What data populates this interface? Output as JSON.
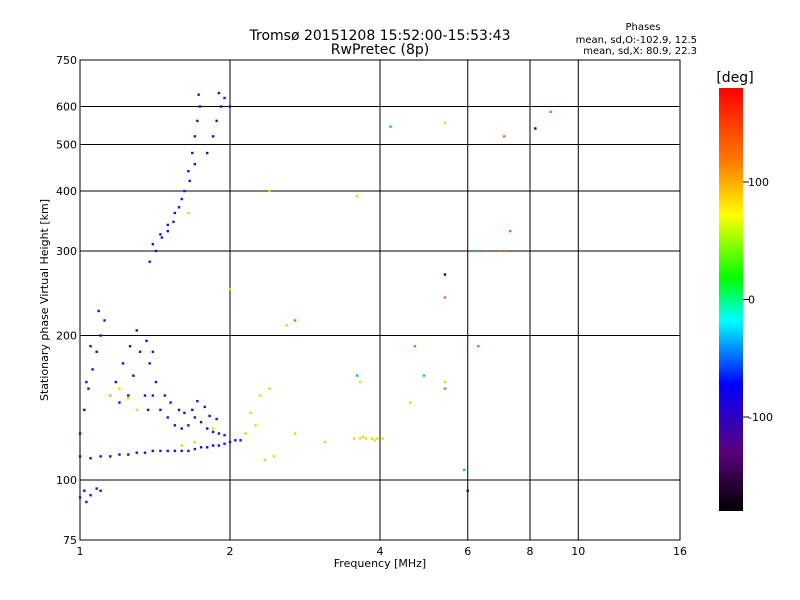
{
  "chart_data": {
    "type": "scatter",
    "title": "Tromsø 20151208 15:52:00-15:53:43",
    "subtitle": "RwPretec (8p)",
    "xlabel": "Frequency [MHz]",
    "ylabel": "Stationary phase Virtual Height [km]",
    "x_scale": "log",
    "y_scale": "log",
    "xlim": [
      1,
      16
    ],
    "ylim": [
      75,
      750
    ],
    "x_ticks": [
      1,
      2,
      4,
      6,
      8,
      10,
      16
    ],
    "x_tick_labels": [
      "1",
      "2",
      "4",
      "6",
      "8",
      "10",
      "16"
    ],
    "y_ticks": [
      75,
      100,
      200,
      300,
      400,
      500,
      600,
      750
    ],
    "y_tick_labels": [
      "75",
      "100",
      "200",
      "300",
      "400",
      "500",
      "600",
      "750"
    ],
    "grid": true,
    "legend": {
      "title": "Phases",
      "lines": [
        "mean, sd,O:-102.9, 12.5",
        "mean, sd,X: 80.9, 22.3"
      ],
      "placement": "top-right"
    },
    "colorbar": {
      "label": "[deg]",
      "range": [
        -180,
        180
      ],
      "ticks": [
        100,
        0,
        -100
      ],
      "tick_labels": [
        "100",
        "0",
        "-100"
      ],
      "colors": [
        "#000000",
        "#5a007a",
        "#0000ff",
        "#00ffff",
        "#00ff00",
        "#ffff00",
        "#ff8000",
        "#ff0000"
      ]
    },
    "series": [
      {
        "values": [
          [
            1.0,
            92
          ],
          [
            1.02,
            95
          ],
          [
            1.05,
            93
          ],
          [
            1.08,
            96
          ],
          [
            1.1,
            95
          ],
          [
            1.03,
            90
          ],
          [
            1.0,
            112
          ],
          [
            1.05,
            111
          ],
          [
            1.1,
            112
          ],
          [
            1.15,
            112
          ],
          [
            1.2,
            113
          ],
          [
            1.25,
            113
          ],
          [
            1.3,
            114
          ],
          [
            1.35,
            114
          ],
          [
            1.4,
            115
          ],
          [
            1.45,
            115
          ],
          [
            1.5,
            115
          ],
          [
            1.55,
            115
          ],
          [
            1.6,
            115
          ],
          [
            1.65,
            115
          ],
          [
            1.7,
            116
          ],
          [
            1.75,
            117
          ],
          [
            1.8,
            117
          ],
          [
            1.85,
            118
          ],
          [
            1.9,
            118
          ],
          [
            1.95,
            119
          ],
          [
            2.0,
            120
          ],
          [
            2.05,
            121
          ],
          [
            2.1,
            121
          ],
          [
            1.0,
            125
          ],
          [
            1.02,
            140
          ],
          [
            1.04,
            155
          ],
          [
            1.06,
            170
          ],
          [
            1.08,
            185
          ],
          [
            1.1,
            200
          ],
          [
            1.12,
            215
          ],
          [
            1.09,
            225
          ],
          [
            1.05,
            190
          ],
          [
            1.03,
            160
          ],
          [
            1.15,
            150
          ],
          [
            1.2,
            145
          ],
          [
            1.25,
            150
          ],
          [
            1.18,
            160
          ],
          [
            1.22,
            175
          ],
          [
            1.26,
            190
          ],
          [
            1.3,
            205
          ],
          [
            1.32,
            185
          ],
          [
            1.28,
            165
          ],
          [
            1.35,
            150
          ],
          [
            1.37,
            140
          ],
          [
            1.4,
            150
          ],
          [
            1.42,
            160
          ],
          [
            1.38,
            175
          ],
          [
            1.4,
            185
          ],
          [
            1.36,
            195
          ],
          [
            1.45,
            140
          ],
          [
            1.5,
            135
          ],
          [
            1.55,
            130
          ],
          [
            1.6,
            128
          ],
          [
            1.65,
            130
          ],
          [
            1.7,
            135
          ],
          [
            1.75,
            132
          ],
          [
            1.8,
            128
          ],
          [
            1.85,
            126
          ],
          [
            1.9,
            125
          ],
          [
            1.95,
            124
          ],
          [
            1.48,
            150
          ],
          [
            1.52,
            145
          ],
          [
            1.58,
            140
          ],
          [
            1.62,
            138
          ],
          [
            1.68,
            140
          ],
          [
            1.72,
            146
          ],
          [
            1.78,
            142
          ],
          [
            1.82,
            136
          ],
          [
            1.88,
            134
          ],
          [
            1.38,
            285
          ],
          [
            1.42,
            300
          ],
          [
            1.46,
            320
          ],
          [
            1.5,
            330
          ],
          [
            1.54,
            345
          ],
          [
            1.58,
            370
          ],
          [
            1.62,
            400
          ],
          [
            1.65,
            440
          ],
          [
            1.68,
            480
          ],
          [
            1.7,
            520
          ],
          [
            1.72,
            560
          ],
          [
            1.74,
            600
          ],
          [
            1.73,
            635
          ],
          [
            1.4,
            310
          ],
          [
            1.45,
            325
          ],
          [
            1.5,
            340
          ],
          [
            1.55,
            360
          ],
          [
            1.6,
            385
          ],
          [
            1.66,
            420
          ],
          [
            1.7,
            455
          ],
          [
            1.8,
            480
          ],
          [
            1.85,
            520
          ],
          [
            1.88,
            560
          ],
          [
            1.92,
            600
          ],
          [
            1.95,
            625
          ],
          [
            1.9,
            640
          ],
          [
            2.0,
            600
          ]
        ]
      },
      {
        "values": [
          [
            1.15,
            150
          ],
          [
            1.2,
            155
          ],
          [
            1.25,
            148
          ],
          [
            1.3,
            140
          ],
          [
            1.6,
            118
          ],
          [
            1.7,
            120
          ],
          [
            1.85,
            128
          ],
          [
            2.2,
            138
          ],
          [
            2.3,
            150
          ],
          [
            2.4,
            155
          ],
          [
            2.25,
            130
          ],
          [
            2.15,
            125
          ],
          [
            2.4,
            400
          ],
          [
            3.6,
            390
          ],
          [
            1.65,
            360
          ],
          [
            2.6,
            210
          ],
          [
            2.0,
            250
          ],
          [
            3.55,
            122
          ],
          [
            3.65,
            122
          ],
          [
            3.75,
            122
          ],
          [
            3.85,
            122
          ],
          [
            3.95,
            122
          ],
          [
            4.05,
            122
          ],
          [
            3.7,
            123
          ],
          [
            3.9,
            121
          ],
          [
            5.4,
            555
          ],
          [
            5.4,
            160
          ],
          [
            4.6,
            145
          ],
          [
            3.65,
            160
          ],
          [
            3.1,
            120
          ],
          [
            2.35,
            110
          ],
          [
            2.45,
            112
          ],
          [
            2.7,
            125
          ]
        ]
      },
      {
        "values": [
          [
            5.4,
            240
          ],
          [
            5.4,
            155
          ],
          [
            6.3,
            190
          ],
          [
            7.1,
            300
          ],
          [
            7.1,
            520
          ],
          [
            7.3,
            330
          ],
          [
            4.7,
            190
          ],
          [
            2.7,
            215
          ]
        ]
      },
      {
        "values": [
          [
            4.2,
            545
          ],
          [
            6.3,
            300
          ],
          [
            5.9,
            105
          ],
          [
            8.8,
            585
          ],
          [
            3.6,
            165
          ],
          [
            4.9,
            165
          ]
        ]
      },
      {
        "values": [
          [
            5.4,
            268
          ],
          [
            8.2,
            540
          ],
          [
            6.0,
            95
          ]
        ]
      }
    ]
  }
}
